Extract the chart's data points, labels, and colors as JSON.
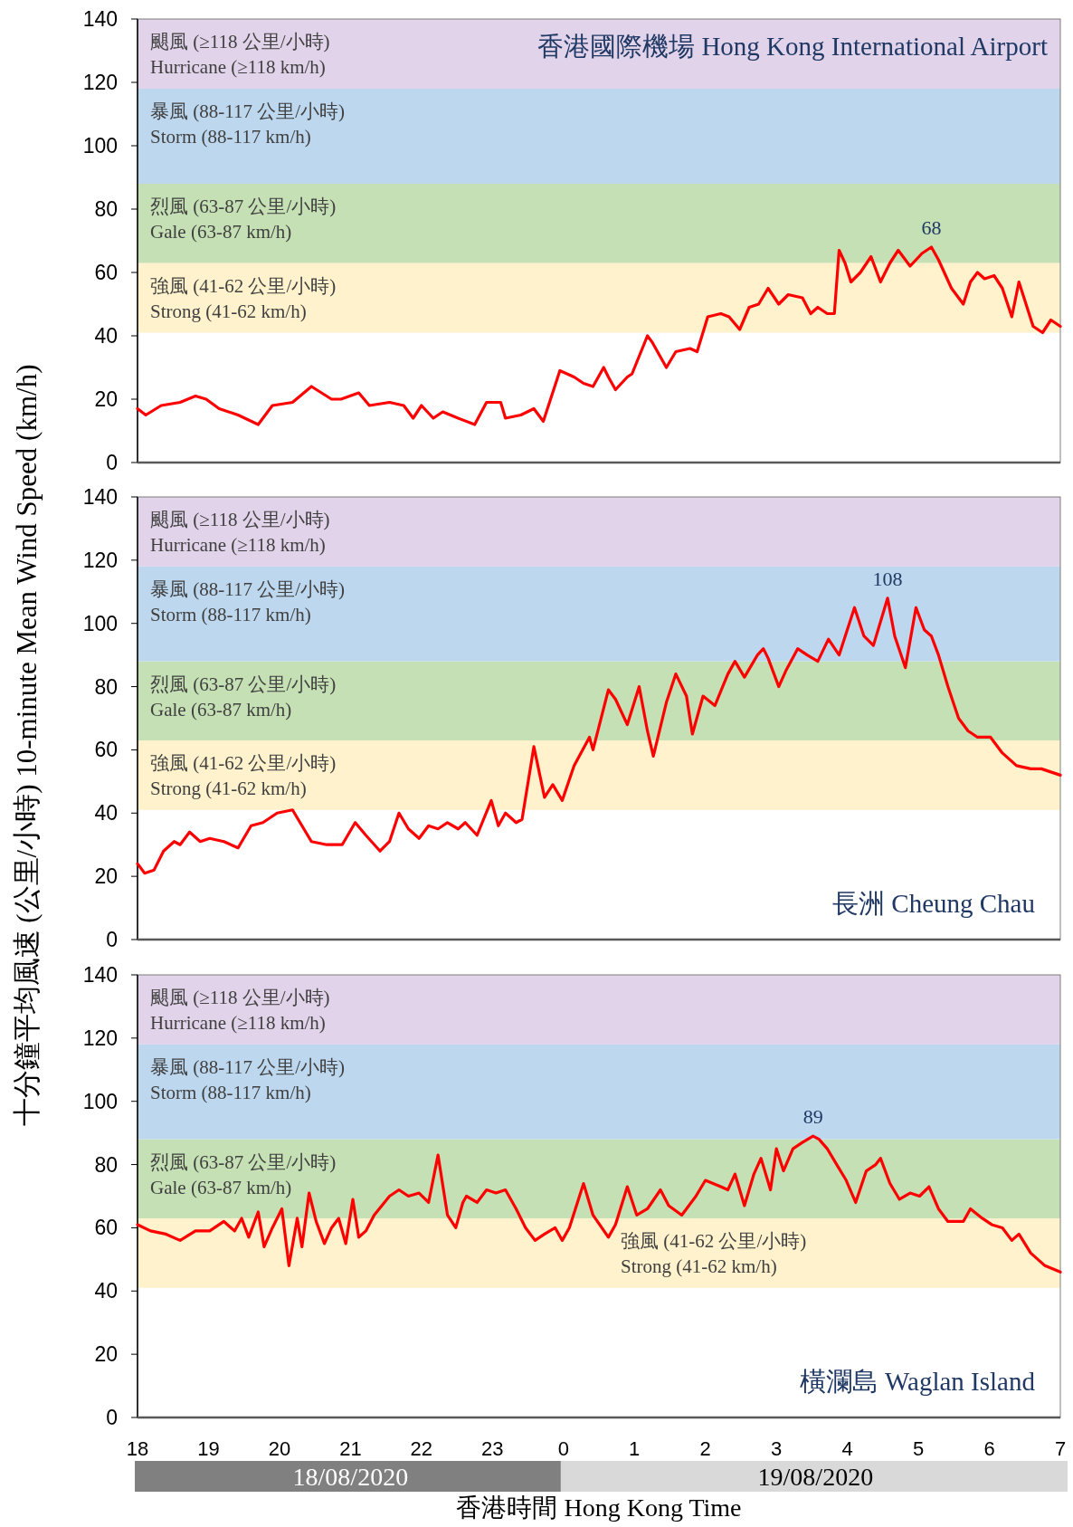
{
  "chart_data": [
    {
      "type": "line",
      "title": "香港國際機場 Hong Kong International Airport",
      "tick_labels": "y",
      "xlim": [
        "2020-08-18T18:00",
        "2020-08-19T07:00"
      ],
      "ylim": [
        0,
        140
      ],
      "yticks": [
        0,
        20,
        40,
        60,
        80,
        100,
        120,
        140
      ],
      "bands": [
        {
          "axis": "y",
          "from": 41,
          "to": 63,
          "label": "強風  (41-62 公里/小時)\nStrong (41-62 km/h)",
          "color": "#fff2cc"
        },
        {
          "axis": "y",
          "from": 63,
          "to": 88,
          "label": "烈風  (63-87 公里/小時)\nGale (63-87 km/h)",
          "color": "#c5e0b4"
        },
        {
          "axis": "y",
          "from": 88,
          "to": 118,
          "label": "暴風  (88-117 公里/小時)\nStorm (88-117 km/h)",
          "color": "#bdd7ee"
        },
        {
          "axis": "y",
          "from": 118,
          "to": 140,
          "label": "颶風  (≥118 公里/小時)\nHurricane (≥118 km/h)",
          "color": "#e1d3e9"
        }
      ],
      "annotations": [
        {
          "text": "68",
          "x": "2020-08-19T05:11",
          "y": 68
        }
      ],
      "series": [
        {
          "color": "#ff0000",
          "x": [
            "2020-08-18T18:00",
            "2020-08-18T18:07",
            "2020-08-18T18:20",
            "2020-08-18T18:36",
            "2020-08-18T18:49",
            "2020-08-18T18:58",
            "2020-08-18T19:09",
            "2020-08-18T19:25",
            "2020-08-18T19:42",
            "2020-08-18T19:54",
            "2020-08-18T20:11",
            "2020-08-18T20:27",
            "2020-08-18T20:44",
            "2020-08-18T20:52",
            "2020-08-18T21:07",
            "2020-08-18T21:16",
            "2020-08-18T21:33",
            "2020-08-18T21:45",
            "2020-08-18T21:53",
            "2020-08-18T22:00",
            "2020-08-18T22:10",
            "2020-08-18T22:18",
            "2020-08-18T22:31",
            "2020-08-18T22:45",
            "2020-08-18T22:55",
            "2020-08-18T23:07",
            "2020-08-18T23:11",
            "2020-08-18T23:24",
            "2020-08-18T23:35",
            "2020-08-18T23:43",
            "2020-08-18T23:57",
            "2020-08-19T00:09",
            "2020-08-19T00:17",
            "2020-08-19T00:25",
            "2020-08-19T00:34",
            "2020-08-19T00:38",
            "2020-08-19T00:44",
            "2020-08-19T00:54",
            "2020-08-19T00:58",
            "2020-08-19T01:11",
            "2020-08-19T01:15",
            "2020-08-19T01:27",
            "2020-08-19T01:35",
            "2020-08-19T01:47",
            "2020-08-19T01:53",
            "2020-08-19T02:02",
            "2020-08-19T02:13",
            "2020-08-19T02:20",
            "2020-08-19T02:29",
            "2020-08-19T02:37",
            "2020-08-19T02:45",
            "2020-08-19T02:53",
            "2020-08-19T03:02",
            "2020-08-19T03:10",
            "2020-08-19T03:22",
            "2020-08-19T03:29",
            "2020-08-19T03:35",
            "2020-08-19T03:43",
            "2020-08-19T03:49",
            "2020-08-19T03:53",
            "2020-08-19T03:58",
            "2020-08-19T04:03",
            "2020-08-19T04:11",
            "2020-08-19T04:20",
            "2020-08-19T04:28",
            "2020-08-19T04:36",
            "2020-08-19T04:43",
            "2020-08-19T04:53",
            "2020-08-19T05:03",
            "2020-08-19T05:11",
            "2020-08-19T05:17",
            "2020-08-19T05:28",
            "2020-08-19T05:38",
            "2020-08-19T05:44",
            "2020-08-19T05:50",
            "2020-08-19T05:56",
            "2020-08-19T06:04",
            "2020-08-19T06:11",
            "2020-08-19T06:19",
            "2020-08-19T06:25",
            "2020-08-19T06:31",
            "2020-08-19T06:37",
            "2020-08-19T06:45",
            "2020-08-19T06:52",
            "2020-08-19T07:00"
          ],
          "values": [
            17,
            15,
            18,
            19,
            21,
            20,
            17,
            15,
            12,
            18,
            19,
            24,
            20,
            20,
            22,
            18,
            19,
            18,
            14,
            18,
            14,
            16,
            14,
            12,
            19,
            19,
            14,
            15,
            17,
            13,
            29,
            27,
            25,
            24,
            30,
            27,
            23,
            27,
            28,
            40,
            38,
            30,
            35,
            36,
            35,
            46,
            47,
            46,
            42,
            49,
            50,
            55,
            50,
            53,
            52,
            47,
            49,
            47,
            47,
            67,
            63,
            57,
            60,
            65,
            57,
            63,
            67,
            62,
            66,
            68,
            64,
            55,
            50,
            57,
            60,
            58,
            59,
            55,
            46,
            57,
            50,
            43,
            41,
            45,
            43
          ]
        }
      ]
    },
    {
      "type": "line",
      "title": "長洲  Cheung Chau",
      "ylabel": "十分鐘平均風速 (公里/小時)      10-minute Mean Wind Speed (km/h)",
      "tick_labels": "y",
      "xlim": [
        "2020-08-18T18:00",
        "2020-08-19T07:00"
      ],
      "ylim": [
        0,
        140
      ],
      "yticks": [
        0,
        20,
        40,
        60,
        80,
        100,
        120,
        140
      ],
      "bands": [
        {
          "axis": "y",
          "from": 41,
          "to": 63,
          "label": "強風  (41-62 公里/小時)\nStrong (41-62 km/h)",
          "color": "#fff2cc"
        },
        {
          "axis": "y",
          "from": 63,
          "to": 88,
          "label": "烈風  (63-87 公里/小時)\nGale (63-87 km/h)",
          "color": "#c5e0b4"
        },
        {
          "axis": "y",
          "from": 88,
          "to": 118,
          "label": "暴風  (88-117 公里/小時)\nStorm (88-117 km/h)",
          "color": "#bdd7ee"
        },
        {
          "axis": "y",
          "from": 118,
          "to": 140,
          "label": "颶風  (≥118 公里/小時)\nHurricane (≥118 km/h)",
          "color": "#e1d3e9"
        }
      ],
      "annotations": [
        {
          "text": "108",
          "x": "2020-08-19T04:34",
          "y": 108
        }
      ],
      "series": [
        {
          "color": "#ff0000",
          "x": [
            "2020-08-18T18:00",
            "2020-08-18T18:06",
            "2020-08-18T18:14",
            "2020-08-18T18:22",
            "2020-08-18T18:31",
            "2020-08-18T18:36",
            "2020-08-18T18:44",
            "2020-08-18T18:53",
            "2020-08-18T19:01",
            "2020-08-18T19:13",
            "2020-08-18T19:25",
            "2020-08-18T19:36",
            "2020-08-18T19:46",
            "2020-08-18T19:58",
            "2020-08-18T20:11",
            "2020-08-18T20:19",
            "2020-08-18T20:27",
            "2020-08-18T20:40",
            "2020-08-18T20:53",
            "2020-08-18T21:04",
            "2020-08-18T21:13",
            "2020-08-18T21:25",
            "2020-08-18T21:33",
            "2020-08-18T21:41",
            "2020-08-18T21:49",
            "2020-08-18T21:58",
            "2020-08-18T22:06",
            "2020-08-18T22:14",
            "2020-08-18T22:22",
            "2020-08-18T22:31",
            "2020-08-18T22:37",
            "2020-08-18T22:47",
            "2020-08-18T22:59",
            "2020-08-18T23:05",
            "2020-08-18T23:11",
            "2020-08-18T23:20",
            "2020-08-18T23:25",
            "2020-08-18T23:35",
            "2020-08-18T23:44",
            "2020-08-18T23:51",
            "2020-08-18T23:59",
            "2020-08-19T00:09",
            "2020-08-19T00:22",
            "2020-08-19T00:25",
            "2020-08-19T00:38",
            "2020-08-19T00:44",
            "2020-08-19T00:54",
            "2020-08-19T01:04",
            "2020-08-19T01:11",
            "2020-08-19T01:16",
            "2020-08-19T01:27",
            "2020-08-19T01:35",
            "2020-08-19T01:44",
            "2020-08-19T01:49",
            "2020-08-19T01:58",
            "2020-08-19T02:08",
            "2020-08-19T02:19",
            "2020-08-19T02:25",
            "2020-08-19T02:33",
            "2020-08-19T02:44",
            "2020-08-19T02:49",
            "2020-08-19T02:53",
            "2020-08-19T03:02",
            "2020-08-19T03:08",
            "2020-08-19T03:18",
            "2020-08-19T03:26",
            "2020-08-19T03:35",
            "2020-08-19T03:44",
            "2020-08-19T03:53",
            "2020-08-19T04:06",
            "2020-08-19T04:14",
            "2020-08-19T04:22",
            "2020-08-19T04:34",
            "2020-08-19T04:40",
            "2020-08-19T04:49",
            "2020-08-19T04:58",
            "2020-08-19T05:05",
            "2020-08-19T05:11",
            "2020-08-19T05:17",
            "2020-08-19T05:25",
            "2020-08-19T05:34",
            "2020-08-19T05:42",
            "2020-08-19T05:50",
            "2020-08-19T06:01",
            "2020-08-19T06:11",
            "2020-08-19T06:23",
            "2020-08-19T06:35",
            "2020-08-19T06:44",
            "2020-08-19T07:00"
          ],
          "values": [
            24,
            21,
            22,
            28,
            31,
            30,
            34,
            31,
            32,
            31,
            29,
            36,
            37,
            40,
            41,
            36,
            31,
            30,
            30,
            37,
            33,
            28,
            31,
            40,
            35,
            32,
            36,
            35,
            37,
            35,
            37,
            33,
            44,
            36,
            40,
            37,
            38,
            61,
            45,
            49,
            44,
            55,
            64,
            60,
            79,
            76,
            68,
            80,
            66,
            58,
            75,
            84,
            77,
            65,
            77,
            74,
            84,
            88,
            83,
            90,
            92,
            89,
            80,
            85,
            92,
            90,
            88,
            95,
            90,
            105,
            96,
            93,
            108,
            96,
            86,
            105,
            98,
            96,
            90,
            80,
            70,
            66,
            64,
            64,
            59,
            55,
            54,
            54,
            52
          ]
        }
      ]
    },
    {
      "type": "line",
      "title": "橫瀾島  Waglan Island",
      "xlabel": "香港時間 Hong Kong Time",
      "xlim": [
        "2020-08-18T18:00",
        "2020-08-19T07:00"
      ],
      "ylim": [
        0,
        140
      ],
      "yticks": [
        0,
        20,
        40,
        60,
        80,
        100,
        120,
        140
      ],
      "xticks": [
        {
          "value": "2020-08-18T18:00",
          "label": "18"
        },
        {
          "value": "2020-08-18T19:00",
          "label": "19"
        },
        {
          "value": "2020-08-18T20:00",
          "label": "20"
        },
        {
          "value": "2020-08-18T21:00",
          "label": "21"
        },
        {
          "value": "2020-08-18T22:00",
          "label": "22"
        },
        {
          "value": "2020-08-18T23:00",
          "label": "23"
        },
        {
          "value": "2020-08-19T00:00",
          "label": "0"
        },
        {
          "value": "2020-08-19T01:00",
          "label": "1"
        },
        {
          "value": "2020-08-19T02:00",
          "label": "2"
        },
        {
          "value": "2020-08-19T03:00",
          "label": "3"
        },
        {
          "value": "2020-08-19T04:00",
          "label": "4"
        },
        {
          "value": "2020-08-19T05:00",
          "label": "5"
        },
        {
          "value": "2020-08-19T06:00",
          "label": "6"
        },
        {
          "value": "2020-08-19T07:00",
          "label": "7"
        }
      ],
      "bands": [
        {
          "axis": "y",
          "from": 41,
          "to": 63,
          "label": "強風  (41-62 公里/小時)\nStrong (41-62 km/h)",
          "color": "#fff2cc"
        },
        {
          "axis": "y",
          "from": 63,
          "to": 88,
          "label": "烈風  (63-87 公里/小時)\nGale (63-87 km/h)",
          "color": "#c5e0b4"
        },
        {
          "axis": "y",
          "from": 88,
          "to": 118,
          "label": "暴風  (88-117 公里/小時)\nStorm (88-117 km/h)",
          "color": "#bdd7ee"
        },
        {
          "axis": "y",
          "from": 118,
          "to": 140,
          "label": "颶風  (≥118 公里/小時)\nHurricane (≥118 km/h)",
          "color": "#e1d3e9"
        }
      ],
      "annotations": [
        {
          "text": "89",
          "x": "2020-08-19T03:31",
          "y": 89
        },
        "18/08/2020",
        "19/08/2020"
      ],
      "series": [
        {
          "color": "#ff0000",
          "x": [
            "2020-08-18T18:00",
            "2020-08-18T18:11",
            "2020-08-18T18:24",
            "2020-08-18T18:36",
            "2020-08-18T18:49",
            "2020-08-18T19:01",
            "2020-08-18T19:13",
            "2020-08-18T19:22",
            "2020-08-18T19:28",
            "2020-08-18T19:34",
            "2020-08-18T19:42",
            "2020-08-18T19:47",
            "2020-08-18T19:54",
            "2020-08-18T20:02",
            "2020-08-18T20:08",
            "2020-08-18T20:15",
            "2020-08-18T20:19",
            "2020-08-18T20:25",
            "2020-08-18T20:31",
            "2020-08-18T20:38",
            "2020-08-18T20:44",
            "2020-08-18T20:50",
            "2020-08-18T20:56",
            "2020-08-18T21:02",
            "2020-08-18T21:07",
            "2020-08-18T21:13",
            "2020-08-18T21:20",
            "2020-08-18T21:33",
            "2020-08-18T21:41",
            "2020-08-18T21:49",
            "2020-08-18T21:58",
            "2020-08-18T22:06",
            "2020-08-18T22:14",
            "2020-08-18T22:22",
            "2020-08-18T22:29",
            "2020-08-18T22:35",
            "2020-08-18T22:38",
            "2020-08-18T22:47",
            "2020-08-18T22:55",
            "2020-08-18T23:03",
            "2020-08-18T23:11",
            "2020-08-18T23:20",
            "2020-08-18T23:28",
            "2020-08-18T23:36",
            "2020-08-18T23:44",
            "2020-08-18T23:53",
            "2020-08-18T23:59",
            "2020-08-19T00:05",
            "2020-08-19T00:17",
            "2020-08-19T00:25",
            "2020-08-19T00:38",
            "2020-08-19T00:44",
            "2020-08-19T00:54",
            "2020-08-19T01:02",
            "2020-08-19T01:11",
            "2020-08-19T01:22",
            "2020-08-19T01:29",
            "2020-08-19T01:40",
            "2020-08-19T01:52",
            "2020-08-19T02:00",
            "2020-08-19T02:13",
            "2020-08-19T02:19",
            "2020-08-19T02:25",
            "2020-08-19T02:33",
            "2020-08-19T02:41",
            "2020-08-19T02:47",
            "2020-08-19T02:55",
            "2020-08-19T03:00",
            "2020-08-19T03:06",
            "2020-08-19T03:14",
            "2020-08-19T03:22",
            "2020-08-19T03:31",
            "2020-08-19T03:36",
            "2020-08-19T03:43",
            "2020-08-19T03:51",
            "2020-08-19T03:59",
            "2020-08-19T04:07",
            "2020-08-19T04:16",
            "2020-08-19T04:24",
            "2020-08-19T04:28",
            "2020-08-19T04:36",
            "2020-08-19T04:44",
            "2020-08-19T04:53",
            "2020-08-19T05:01",
            "2020-08-19T05:09",
            "2020-08-19T05:17",
            "2020-08-19T05:25",
            "2020-08-19T05:38",
            "2020-08-19T05:44",
            "2020-08-19T05:54",
            "2020-08-19T06:02",
            "2020-08-19T06:11",
            "2020-08-19T06:19",
            "2020-08-19T06:25",
            "2020-08-19T06:35",
            "2020-08-19T06:47",
            "2020-08-19T07:00"
          ],
          "values": [
            61,
            59,
            58,
            56,
            59,
            59,
            62,
            59,
            63,
            57,
            65,
            54,
            60,
            66,
            48,
            63,
            54,
            71,
            62,
            55,
            60,
            63,
            55,
            69,
            57,
            59,
            64,
            70,
            72,
            70,
            71,
            68,
            83,
            64,
            60,
            68,
            70,
            68,
            72,
            71,
            72,
            66,
            60,
            56,
            58,
            60,
            56,
            60,
            74,
            64,
            57,
            61,
            73,
            64,
            66,
            72,
            67,
            64,
            70,
            75,
            73,
            72,
            77,
            67,
            77,
            82,
            72,
            85,
            78,
            85,
            87,
            89,
            88,
            85,
            80,
            75,
            68,
            78,
            80,
            82,
            74,
            69,
            71,
            70,
            73,
            66,
            62,
            62,
            66,
            63,
            61,
            60,
            56,
            58,
            52,
            48,
            46
          ]
        }
      ]
    }
  ]
}
